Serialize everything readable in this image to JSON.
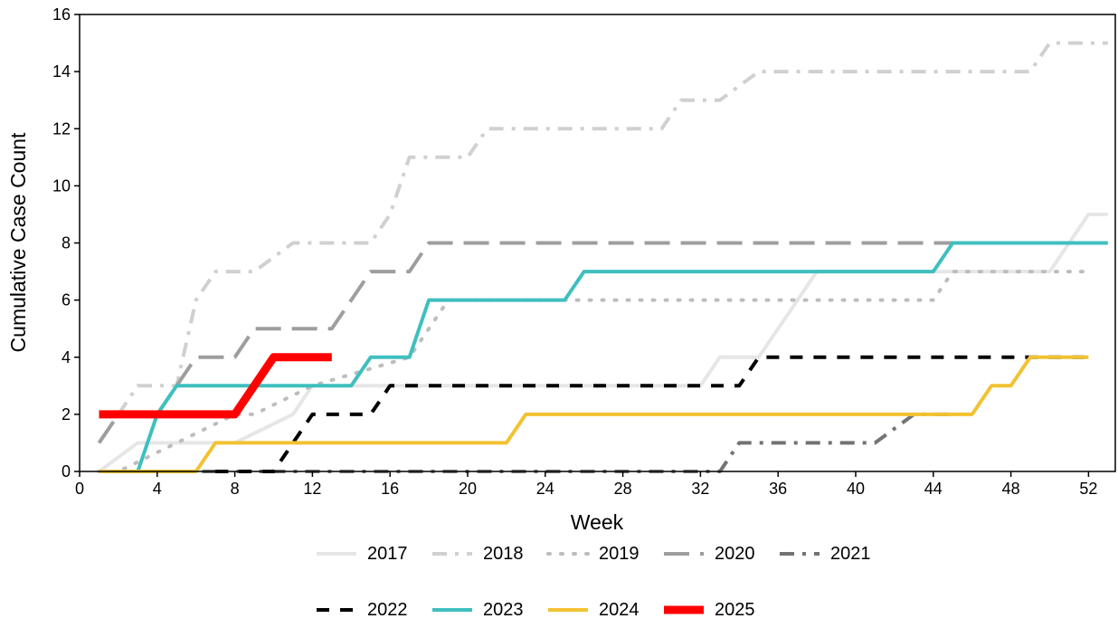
{
  "chart_data": {
    "type": "line",
    "xlabel": "Week",
    "ylabel": "Cumulative Case Count",
    "xlim": [
      0,
      53
    ],
    "ylim": [
      0,
      16
    ],
    "x_ticks": [
      0,
      4,
      8,
      12,
      16,
      20,
      24,
      28,
      32,
      36,
      40,
      44,
      48,
      52
    ],
    "y_ticks": [
      0,
      2,
      4,
      6,
      8,
      10,
      12,
      14,
      16
    ],
    "grid": false,
    "legend_position": "bottom",
    "series": [
      {
        "name": "2017",
        "color": "#e6e6e6",
        "dash": "solid",
        "x": [
          1,
          3,
          8,
          11,
          12,
          32,
          33,
          35,
          38,
          47,
          50,
          52,
          53
        ],
        "y": [
          0,
          1,
          1,
          2,
          3,
          3,
          4,
          4,
          7,
          7,
          7,
          9,
          9
        ]
      },
      {
        "name": "2018",
        "color": "#d0d0d0",
        "dash": "dashdot",
        "x": [
          1,
          3,
          5,
          6,
          7,
          9,
          11,
          15,
          16,
          17,
          20,
          21,
          22,
          30,
          31,
          33,
          35,
          49,
          50,
          53
        ],
        "y": [
          1,
          3,
          3,
          6,
          7,
          7,
          8,
          8,
          9,
          11,
          11,
          12,
          12,
          12,
          13,
          13,
          14,
          14,
          15,
          15
        ]
      },
      {
        "name": "2019",
        "color": "#bdbdbd",
        "dash": "dotted",
        "x": [
          1,
          2,
          8,
          9,
          12,
          17,
          18,
          19,
          25,
          26,
          44,
          45,
          52
        ],
        "y": [
          0,
          0,
          2,
          2,
          3,
          4,
          5,
          6,
          6,
          6,
          6,
          7,
          7
        ]
      },
      {
        "name": "2020",
        "color": "#9e9e9e",
        "dash": "longdash",
        "x": [
          1,
          2,
          4,
          5,
          6,
          7,
          8,
          9,
          13,
          15,
          17,
          18,
          53
        ],
        "y": [
          1,
          2,
          2,
          3,
          4,
          4,
          4,
          5,
          5,
          7,
          7,
          8,
          8
        ]
      },
      {
        "name": "2021",
        "color": "#737373",
        "dash": "dashdot",
        "x": [
          1,
          33,
          34,
          35,
          41,
          43,
          45
        ],
        "y": [
          0,
          0,
          1,
          1,
          1,
          2,
          2
        ]
      },
      {
        "name": "2022",
        "color": "#000000",
        "dash": "dashed",
        "x": [
          7,
          10,
          12,
          15,
          16,
          34,
          35,
          36,
          52
        ],
        "y": [
          0,
          0,
          2,
          2,
          3,
          3,
          4,
          4,
          4
        ]
      },
      {
        "name": "2023",
        "color": "#3fbfbf",
        "dash": "solid",
        "x": [
          1,
          3,
          4,
          5,
          14,
          15,
          16,
          17,
          18,
          25,
          26,
          44,
          45,
          53
        ],
        "y": [
          0,
          0,
          2,
          3,
          3,
          4,
          4,
          4,
          6,
          6,
          7,
          7,
          8,
          8
        ]
      },
      {
        "name": "2024",
        "color": "#f2c232",
        "dash": "solid",
        "x": [
          1,
          6,
          7,
          22,
          23,
          46,
          47,
          48,
          49,
          52
        ],
        "y": [
          0,
          0,
          1,
          1,
          2,
          2,
          3,
          3,
          4,
          4
        ]
      },
      {
        "name": "2025",
        "color": "#ff0000",
        "dash": "solid",
        "thick": true,
        "x": [
          1,
          8,
          10,
          13
        ],
        "y": [
          2,
          2,
          4,
          4
        ]
      }
    ]
  }
}
